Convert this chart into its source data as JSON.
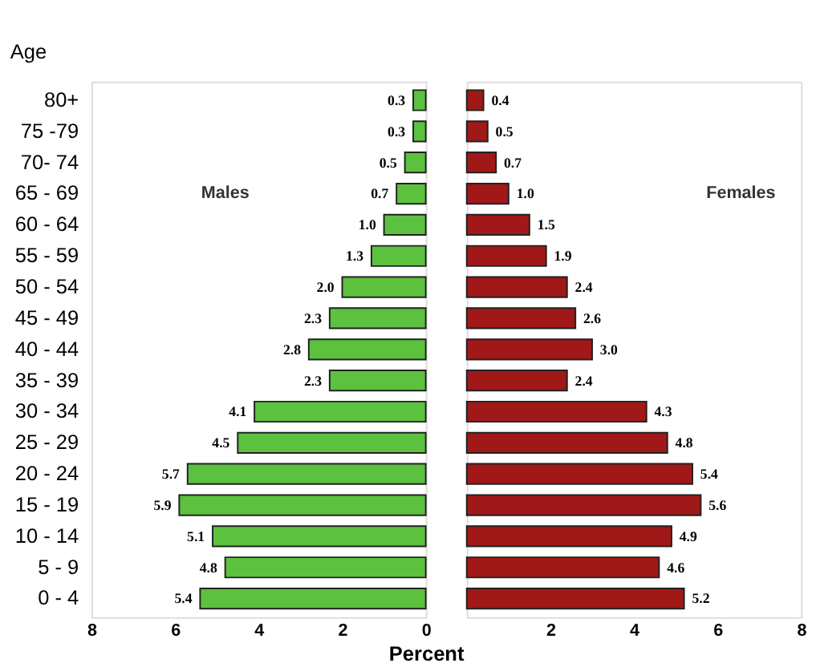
{
  "chart_data": [
    {
      "type": "bar",
      "orientation": "horizontal",
      "xlabel": "Percent",
      "ylabel": "Age",
      "categories": [
        "80+",
        "75 -79",
        "70- 74",
        "65 - 69",
        "60 - 64",
        "55 - 59",
        "50 - 54",
        "45 - 49",
        "40 - 44",
        "35 - 39",
        "30 - 34",
        "25 - 29",
        "20 - 24",
        "15 - 19",
        "10 - 14",
        "5 - 9",
        "0 - 4"
      ],
      "series": [
        {
          "name": "Males",
          "color": "#5cc13e",
          "values": [
            0.3,
            0.3,
            0.5,
            0.7,
            1.0,
            1.3,
            2.0,
            2.3,
            2.8,
            2.3,
            4.1,
            4.5,
            5.7,
            5.9,
            5.1,
            4.8,
            5.4
          ],
          "value_labels": [
            "0.3",
            "0.3",
            "0.5",
            "0.7",
            "1.0",
            "1.3",
            "2.0",
            "2.3",
            "2.8",
            "2.3",
            "4.1",
            "4.5",
            "5.7",
            "5.9",
            "5.1",
            "4.8",
            "5.4"
          ]
        }
      ],
      "xlim": [
        8,
        0
      ],
      "xticks": [
        8,
        6,
        4,
        2,
        0
      ],
      "grid": false,
      "legend": false
    },
    {
      "type": "bar",
      "orientation": "horizontal",
      "categories": [
        null,
        null,
        null,
        null,
        null,
        null,
        null,
        null,
        null,
        null,
        null,
        null,
        null,
        null,
        null,
        null,
        null
      ],
      "series": [
        {
          "name": "Females",
          "color": "#a01818",
          "values": [
            0.4,
            0.5,
            0.7,
            1.0,
            1.5,
            1.9,
            2.4,
            2.6,
            3.0,
            2.4,
            4.3,
            4.8,
            5.4,
            5.6,
            4.9,
            4.6,
            5.2
          ],
          "value_labels": [
            "0.4",
            "0.5",
            "0.7",
            "1.0",
            "1.5",
            "1.9",
            "2.4",
            "2.6",
            "3.0",
            "2.4",
            "4.3",
            "4.8",
            "5.4",
            "5.6",
            "4.9",
            "4.6",
            "5.2"
          ]
        }
      ],
      "xlim": [
        0,
        8
      ],
      "xticks": [
        2,
        4,
        6,
        8
      ],
      "tick_labels": "x",
      "grid": false,
      "legend": false
    }
  ]
}
